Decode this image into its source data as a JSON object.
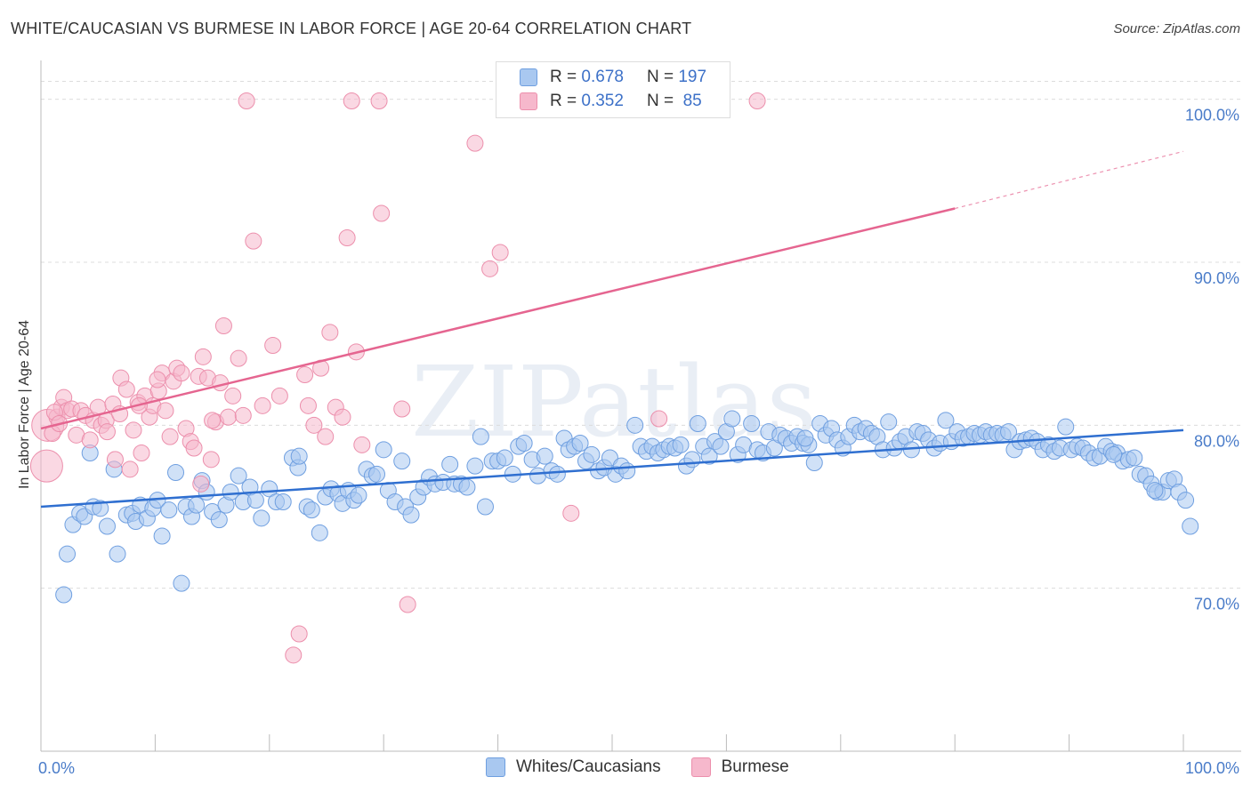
{
  "title": "WHITE/CAUCASIAN VS BURMESE IN LABOR FORCE | AGE 20-64 CORRELATION CHART",
  "source": "Source: ZipAtlas.com",
  "watermark": "ZIPatlas",
  "legend": {
    "rows": [
      {
        "r_label": "R =",
        "r_value": "0.678",
        "n_label": "N =",
        "n_value": "197",
        "color": "#a9c8f0"
      },
      {
        "r_label": "R =",
        "r_value": "0.352",
        "n_label": "N =",
        "n_value": " 85",
        "color": "#f6b8cc"
      }
    ]
  },
  "bottom_legend": [
    {
      "label": "Whites/Caucasians",
      "color": "#a9c8f0"
    },
    {
      "label": "Burmese",
      "color": "#f6b8cc"
    }
  ],
  "chart_data": {
    "type": "scatter",
    "title": "WHITE/CAUCASIAN VS BURMESE IN LABOR FORCE | AGE 20-64 CORRELATION CHART",
    "xlabel": "",
    "ylabel": "In Labor Force | Age 20-64",
    "xlim": [
      0,
      100
    ],
    "ylim": [
      60,
      102
    ],
    "x_tick_labels": [
      "0.0%",
      "100.0%"
    ],
    "y_ticks": [
      70,
      80,
      90,
      100
    ],
    "y_tick_labels": [
      "70.0%",
      "80.0%",
      "90.0%",
      "100.0%"
    ],
    "grid": true,
    "series": [
      {
        "name": "Whites/Caucasians",
        "color": "#a9c8f0",
        "stroke": "#6f9fe0",
        "trend": {
          "x": [
            0,
            100
          ],
          "y": [
            75.0,
            79.7
          ],
          "color": "#2f6fd0"
        },
        "points": [
          [
            2,
            69.6
          ],
          [
            2.3,
            72.1
          ],
          [
            2.8,
            73.9
          ],
          [
            3.4,
            74.6
          ],
          [
            3.8,
            74.4
          ],
          [
            4.3,
            78.3
          ],
          [
            4.6,
            75.0
          ],
          [
            5.2,
            74.9
          ],
          [
            5.8,
            73.8
          ],
          [
            6.4,
            77.3
          ],
          [
            6.7,
            72.1
          ],
          [
            7.5,
            74.5
          ],
          [
            8,
            74.6
          ],
          [
            8.3,
            74.1
          ],
          [
            8.7,
            75.1
          ],
          [
            9.3,
            74.3
          ],
          [
            9.8,
            74.9
          ],
          [
            10.2,
            75.4
          ],
          [
            10.6,
            73.2
          ],
          [
            11.2,
            74.8
          ],
          [
            11.8,
            77.1
          ],
          [
            12.3,
            70.3
          ],
          [
            12.7,
            75.0
          ],
          [
            13.2,
            74.4
          ],
          [
            13.6,
            75.1
          ],
          [
            14.1,
            76.6
          ],
          [
            14.5,
            75.9
          ],
          [
            15,
            74.7
          ],
          [
            15.6,
            74.2
          ],
          [
            16.2,
            75.1
          ],
          [
            16.6,
            75.9
          ],
          [
            17.3,
            76.9
          ],
          [
            17.7,
            75.3
          ],
          [
            18.3,
            76.2
          ],
          [
            18.8,
            75.4
          ],
          [
            19.3,
            74.3
          ],
          [
            20,
            76.1
          ],
          [
            20.6,
            75.3
          ],
          [
            21.2,
            75.3
          ],
          [
            22,
            78.0
          ],
          [
            22.5,
            77.4
          ],
          [
            22.6,
            78.1
          ],
          [
            23.3,
            75.0
          ],
          [
            23.7,
            74.8
          ],
          [
            24.4,
            73.4
          ],
          [
            24.9,
            75.6
          ],
          [
            25.4,
            76.1
          ],
          [
            26,
            75.8
          ],
          [
            26.4,
            75.2
          ],
          [
            26.9,
            76.0
          ],
          [
            27.4,
            75.4
          ],
          [
            27.8,
            75.7
          ],
          [
            28.5,
            77.3
          ],
          [
            29,
            76.9
          ],
          [
            29.4,
            77.0
          ],
          [
            30,
            78.5
          ],
          [
            30.4,
            76.0
          ],
          [
            31,
            75.3
          ],
          [
            31.6,
            77.8
          ],
          [
            31.9,
            75.0
          ],
          [
            32.4,
            74.5
          ],
          [
            33,
            75.6
          ],
          [
            33.5,
            76.2
          ],
          [
            34,
            76.8
          ],
          [
            34.5,
            76.4
          ],
          [
            35.2,
            76.5
          ],
          [
            35.8,
            77.6
          ],
          [
            36.2,
            76.4
          ],
          [
            36.8,
            76.4
          ],
          [
            37.3,
            76.2
          ],
          [
            38,
            77.5
          ],
          [
            38.5,
            79.3
          ],
          [
            38.9,
            75.0
          ],
          [
            39.5,
            77.8
          ],
          [
            40,
            77.8
          ],
          [
            40.6,
            78.0
          ],
          [
            41.3,
            77.0
          ],
          [
            41.8,
            78.7
          ],
          [
            42.3,
            78.9
          ],
          [
            43,
            77.9
          ],
          [
            43.5,
            76.9
          ],
          [
            44.1,
            78.1
          ],
          [
            44.7,
            77.2
          ],
          [
            45.2,
            77.0
          ],
          [
            45.8,
            79.2
          ],
          [
            46.2,
            78.5
          ],
          [
            46.7,
            78.7
          ],
          [
            47.2,
            78.9
          ],
          [
            47.7,
            77.8
          ],
          [
            48.2,
            78.2
          ],
          [
            48.8,
            77.2
          ],
          [
            49.3,
            77.4
          ],
          [
            49.8,
            78.0
          ],
          [
            50.3,
            77.0
          ],
          [
            50.8,
            77.5
          ],
          [
            51.3,
            77.2
          ],
          [
            52,
            80.0
          ],
          [
            52.5,
            78.7
          ],
          [
            53,
            78.4
          ],
          [
            53.5,
            78.7
          ],
          [
            54,
            78.3
          ],
          [
            54.5,
            78.5
          ],
          [
            55,
            78.7
          ],
          [
            55.5,
            78.6
          ],
          [
            56,
            78.8
          ],
          [
            56.5,
            77.5
          ],
          [
            57,
            77.9
          ],
          [
            57.5,
            80.1
          ],
          [
            58,
            78.7
          ],
          [
            58.5,
            78.1
          ],
          [
            59,
            79.0
          ],
          [
            59.5,
            78.7
          ],
          [
            60,
            79.6
          ],
          [
            60.5,
            80.4
          ],
          [
            61,
            78.2
          ],
          [
            61.5,
            78.8
          ],
          [
            62.2,
            80.1
          ],
          [
            62.7,
            78.5
          ],
          [
            63.2,
            78.3
          ],
          [
            63.7,
            79.6
          ],
          [
            64.2,
            78.6
          ],
          [
            64.7,
            79.4
          ],
          [
            65.2,
            79.2
          ],
          [
            65.7,
            78.9
          ],
          [
            66.2,
            79.3
          ],
          [
            66.7,
            78.9
          ],
          [
            67.2,
            78.8
          ],
          [
            67.7,
            77.7
          ],
          [
            68.2,
            80.1
          ],
          [
            68.7,
            79.4
          ],
          [
            69.2,
            79.8
          ],
          [
            69.7,
            79.1
          ],
          [
            70.2,
            78.6
          ],
          [
            70.7,
            79.3
          ],
          [
            71.2,
            80.0
          ],
          [
            71.7,
            79.6
          ],
          [
            72.2,
            79.8
          ],
          [
            72.7,
            79.5
          ],
          [
            73.2,
            79.3
          ],
          [
            73.7,
            78.5
          ],
          [
            74.2,
            80.2
          ],
          [
            74.7,
            78.6
          ],
          [
            75.2,
            79.0
          ],
          [
            75.7,
            79.3
          ],
          [
            76.2,
            78.5
          ],
          [
            76.7,
            79.6
          ],
          [
            77.2,
            79.5
          ],
          [
            77.7,
            79.1
          ],
          [
            78.2,
            78.6
          ],
          [
            78.7,
            78.9
          ],
          [
            79.2,
            80.3
          ],
          [
            79.7,
            79.0
          ],
          [
            80.2,
            79.6
          ],
          [
            80.7,
            79.2
          ],
          [
            81.2,
            79.3
          ],
          [
            81.7,
            79.5
          ],
          [
            82.2,
            79.4
          ],
          [
            82.7,
            79.6
          ],
          [
            83.2,
            79.4
          ],
          [
            83.7,
            79.5
          ],
          [
            84.2,
            79.4
          ],
          [
            84.7,
            79.6
          ],
          [
            85.2,
            78.5
          ],
          [
            85.7,
            79.0
          ],
          [
            86.2,
            79.1
          ],
          [
            86.7,
            79.2
          ],
          [
            87.2,
            79.0
          ],
          [
            87.7,
            78.5
          ],
          [
            88.2,
            78.8
          ],
          [
            88.7,
            78.4
          ],
          [
            89.2,
            78.6
          ],
          [
            89.7,
            79.9
          ],
          [
            90.2,
            78.5
          ],
          [
            90.7,
            78.7
          ],
          [
            91.2,
            78.6
          ],
          [
            91.7,
            78.3
          ],
          [
            92.2,
            78.0
          ],
          [
            92.7,
            78.1
          ],
          [
            93.2,
            78.7
          ],
          [
            93.7,
            78.4
          ],
          [
            94.2,
            78.3
          ],
          [
            94.7,
            77.8
          ],
          [
            95.2,
            77.9
          ],
          [
            95.7,
            78.0
          ],
          [
            96.2,
            77.0
          ],
          [
            96.7,
            76.9
          ],
          [
            97.2,
            76.4
          ],
          [
            97.7,
            75.9
          ],
          [
            98.2,
            75.9
          ],
          [
            98.7,
            76.6
          ],
          [
            99.2,
            76.7
          ],
          [
            99.6,
            75.9
          ],
          [
            100.2,
            75.4
          ],
          [
            100.6,
            73.8
          ],
          [
            97.5,
            76.0
          ],
          [
            93.9,
            78.2
          ],
          [
            66.9,
            79.2
          ]
        ]
      },
      {
        "name": "Burmese",
        "color": "#f6b8cc",
        "stroke": "#ec8fac",
        "trend": {
          "x": [
            0,
            80
          ],
          "y": [
            79.8,
            93.3
          ],
          "dashed_to": [
            100,
            96.8
          ],
          "color": "#e56590"
        },
        "points": [
          [
            0.5,
            77.5
          ],
          [
            0.6,
            80.0
          ],
          [
            1.0,
            79.5
          ],
          [
            1.4,
            80.5
          ],
          [
            1.8,
            81.1
          ],
          [
            2.0,
            81.7
          ],
          [
            2.3,
            80.9
          ],
          [
            2.7,
            81.0
          ],
          [
            3.1,
            79.4
          ],
          [
            3.5,
            80.9
          ],
          [
            3.9,
            80.6
          ],
          [
            4.3,
            79.1
          ],
          [
            4.6,
            80.3
          ],
          [
            5.0,
            81.1
          ],
          [
            5.3,
            80.0
          ],
          [
            5.7,
            80.3
          ],
          [
            5.8,
            79.6
          ],
          [
            6.3,
            81.3
          ],
          [
            6.5,
            77.9
          ],
          [
            6.9,
            80.7
          ],
          [
            7.0,
            82.9
          ],
          [
            7.5,
            82.2
          ],
          [
            7.8,
            77.3
          ],
          [
            8.1,
            79.7
          ],
          [
            8.5,
            81.4
          ],
          [
            8.8,
            78.3
          ],
          [
            9.1,
            81.8
          ],
          [
            9.5,
            80.5
          ],
          [
            9.8,
            81.2
          ],
          [
            10.3,
            82.1
          ],
          [
            10.6,
            83.2
          ],
          [
            10.9,
            80.9
          ],
          [
            11.3,
            79.3
          ],
          [
            11.6,
            82.7
          ],
          [
            11.9,
            83.5
          ],
          [
            12.3,
            83.2
          ],
          [
            12.7,
            79.8
          ],
          [
            13.1,
            79.0
          ],
          [
            13.4,
            78.6
          ],
          [
            13.8,
            83.0
          ],
          [
            14.2,
            84.2
          ],
          [
            14.6,
            82.9
          ],
          [
            14.9,
            77.9
          ],
          [
            15.3,
            80.2
          ],
          [
            15.7,
            82.6
          ],
          [
            16.0,
            86.1
          ],
          [
            16.4,
            80.5
          ],
          [
            16.8,
            81.8
          ],
          [
            17.3,
            84.1
          ],
          [
            17.7,
            80.6
          ],
          [
            18.0,
            99.9
          ],
          [
            18.6,
            91.3
          ],
          [
            19.4,
            81.2
          ],
          [
            20.3,
            84.9
          ],
          [
            20.9,
            81.8
          ],
          [
            22.1,
            65.9
          ],
          [
            22.6,
            67.2
          ],
          [
            23.1,
            83.1
          ],
          [
            23.4,
            81.2
          ],
          [
            23.9,
            80.0
          ],
          [
            24.5,
            83.5
          ],
          [
            24.9,
            79.3
          ],
          [
            25.3,
            85.7
          ],
          [
            25.8,
            81.1
          ],
          [
            26.4,
            80.5
          ],
          [
            26.8,
            91.5
          ],
          [
            27.2,
            99.9
          ],
          [
            27.6,
            84.5
          ],
          [
            28.1,
            78.8
          ],
          [
            29.6,
            99.9
          ],
          [
            29.8,
            93.0
          ],
          [
            31.6,
            81.0
          ],
          [
            32.1,
            69.0
          ],
          [
            38.0,
            97.3
          ],
          [
            39.3,
            89.6
          ],
          [
            40.2,
            90.6
          ],
          [
            46.4,
            74.6
          ],
          [
            54.1,
            80.4
          ],
          [
            62.7,
            99.9
          ],
          [
            14.0,
            76.4
          ],
          [
            15.0,
            80.3
          ],
          [
            8.6,
            81.2
          ],
          [
            10.2,
            82.8
          ],
          [
            1.2,
            80.8
          ],
          [
            1.6,
            80.1
          ]
        ]
      }
    ]
  }
}
